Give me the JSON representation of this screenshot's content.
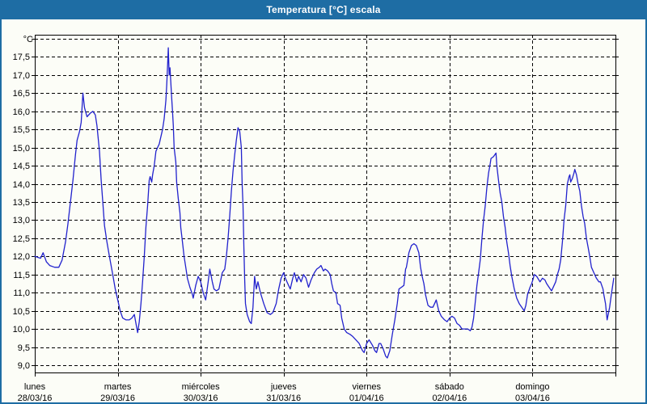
{
  "window": {
    "title": "Temperatura [°C] escala"
  },
  "colors": {
    "titlebar_bg": "#1e6da4",
    "titlebar_text": "#ffffff",
    "window_border": "#1e6da4",
    "background": "#fcfdf7",
    "grid": "#000000",
    "axis": "#000000",
    "tick_text": "#000000",
    "line": "#2222cd"
  },
  "chart_data": {
    "type": "line",
    "title": "Temperatura [°C] escala",
    "ylabel": "°C",
    "ylim": [
      9.0,
      18.0
    ],
    "ytick_step": 0.5,
    "ytick_labels_shown": [
      "17,5",
      "17,0",
      "16,5",
      "16,0",
      "15,5",
      "15,0",
      "14,5",
      "14,0",
      "13,5",
      "13,0",
      "12,5",
      "12,0",
      "11,5",
      "11,0",
      "10,5",
      "10,0",
      "9,5",
      "9,0"
    ],
    "decimal_separator": ",",
    "grid": "dashed",
    "legend": "none",
    "x_axis": {
      "range_days": [
        0,
        7
      ],
      "categories": [
        {
          "day": "lunes",
          "date": "28/03/16"
        },
        {
          "day": "martes",
          "date": "29/03/16"
        },
        {
          "day": "miércoles",
          "date": "30/03/16"
        },
        {
          "day": "jueves",
          "date": "31/03/16"
        },
        {
          "day": "viernes",
          "date": "01/04/16"
        },
        {
          "day": "sábado",
          "date": "02/04/16"
        },
        {
          "day": "domingo",
          "date": "03/04/16"
        }
      ]
    },
    "series": [
      {
        "name": "Temperatura",
        "unit": "°C",
        "color": "#2222cd",
        "points_day_degC": [
          [
            0.0,
            12.0
          ],
          [
            0.07,
            11.95
          ],
          [
            0.1,
            12.1
          ],
          [
            0.14,
            11.85
          ],
          [
            0.18,
            11.75
          ],
          [
            0.24,
            11.7
          ],
          [
            0.29,
            11.7
          ],
          [
            0.33,
            11.9
          ],
          [
            0.37,
            12.4
          ],
          [
            0.4,
            12.9
          ],
          [
            0.43,
            13.5
          ],
          [
            0.46,
            14.1
          ],
          [
            0.49,
            14.8
          ],
          [
            0.51,
            15.2
          ],
          [
            0.54,
            15.45
          ],
          [
            0.56,
            15.7
          ],
          [
            0.58,
            16.5
          ],
          [
            0.6,
            16.1
          ],
          [
            0.63,
            15.85
          ],
          [
            0.67,
            15.95
          ],
          [
            0.7,
            16.0
          ],
          [
            0.73,
            15.9
          ],
          [
            0.75,
            15.6
          ],
          [
            0.78,
            14.9
          ],
          [
            0.8,
            14.1
          ],
          [
            0.82,
            13.5
          ],
          [
            0.84,
            12.85
          ],
          [
            0.87,
            12.4
          ],
          [
            0.9,
            12.0
          ],
          [
            0.94,
            11.5
          ],
          [
            0.97,
            11.1
          ],
          [
            1.0,
            10.8
          ],
          [
            1.03,
            10.5
          ],
          [
            1.06,
            10.3
          ],
          [
            1.1,
            10.25
          ],
          [
            1.14,
            10.25
          ],
          [
            1.17,
            10.3
          ],
          [
            1.2,
            10.4
          ],
          [
            1.22,
            10.15
          ],
          [
            1.24,
            9.9
          ],
          [
            1.26,
            10.2
          ],
          [
            1.28,
            10.7
          ],
          [
            1.3,
            11.3
          ],
          [
            1.32,
            12.0
          ],
          [
            1.34,
            12.8
          ],
          [
            1.36,
            13.4
          ],
          [
            1.38,
            14.1
          ],
          [
            1.39,
            14.2
          ],
          [
            1.41,
            14.05
          ],
          [
            1.42,
            14.25
          ],
          [
            1.44,
            14.5
          ],
          [
            1.46,
            14.9
          ],
          [
            1.48,
            15.0
          ],
          [
            1.5,
            15.1
          ],
          [
            1.51,
            15.2
          ],
          [
            1.54,
            15.5
          ],
          [
            1.56,
            15.8
          ],
          [
            1.58,
            16.3
          ],
          [
            1.59,
            16.7
          ],
          [
            1.6,
            17.2
          ],
          [
            1.61,
            17.75
          ],
          [
            1.62,
            17.0
          ],
          [
            1.63,
            17.2
          ],
          [
            1.65,
            16.4
          ],
          [
            1.66,
            16.0
          ],
          [
            1.67,
            15.6
          ],
          [
            1.68,
            15.0
          ],
          [
            1.7,
            14.6
          ],
          [
            1.71,
            14.05
          ],
          [
            1.73,
            13.6
          ],
          [
            1.75,
            13.2
          ],
          [
            1.76,
            12.8
          ],
          [
            1.78,
            12.4
          ],
          [
            1.8,
            12.0
          ],
          [
            1.82,
            11.7
          ],
          [
            1.84,
            11.4
          ],
          [
            1.87,
            11.15
          ],
          [
            1.9,
            10.95
          ],
          [
            1.91,
            10.85
          ],
          [
            1.94,
            11.2
          ],
          [
            1.97,
            11.45
          ],
          [
            2.0,
            11.3
          ],
          [
            2.03,
            11.0
          ],
          [
            2.06,
            10.8
          ],
          [
            2.09,
            11.3
          ],
          [
            2.11,
            11.65
          ],
          [
            2.14,
            11.3
          ],
          [
            2.16,
            11.1
          ],
          [
            2.19,
            11.05
          ],
          [
            2.22,
            11.1
          ],
          [
            2.26,
            11.55
          ],
          [
            2.29,
            11.65
          ],
          [
            2.31,
            12.0
          ],
          [
            2.33,
            12.5
          ],
          [
            2.35,
            13.1
          ],
          [
            2.37,
            13.8
          ],
          [
            2.39,
            14.35
          ],
          [
            2.41,
            14.8
          ],
          [
            2.43,
            15.2
          ],
          [
            2.45,
            15.55
          ],
          [
            2.47,
            15.45
          ],
          [
            2.49,
            15.0
          ],
          [
            2.5,
            14.0
          ],
          [
            2.51,
            13.4
          ],
          [
            2.52,
            12.3
          ],
          [
            2.53,
            11.4
          ],
          [
            2.54,
            10.7
          ],
          [
            2.56,
            10.4
          ],
          [
            2.59,
            10.2
          ],
          [
            2.61,
            10.15
          ],
          [
            2.63,
            10.6
          ],
          [
            2.65,
            11.45
          ],
          [
            2.67,
            11.1
          ],
          [
            2.69,
            11.3
          ],
          [
            2.72,
            11.0
          ],
          [
            2.76,
            10.7
          ],
          [
            2.8,
            10.45
          ],
          [
            2.84,
            10.4
          ],
          [
            2.87,
            10.45
          ],
          [
            2.91,
            10.7
          ],
          [
            2.94,
            11.1
          ],
          [
            2.97,
            11.4
          ],
          [
            3.0,
            11.55
          ],
          [
            3.02,
            11.4
          ],
          [
            3.05,
            11.25
          ],
          [
            3.08,
            11.1
          ],
          [
            3.11,
            11.4
          ],
          [
            3.13,
            11.55
          ],
          [
            3.16,
            11.3
          ],
          [
            3.18,
            11.45
          ],
          [
            3.21,
            11.3
          ],
          [
            3.24,
            11.5
          ],
          [
            3.27,
            11.4
          ],
          [
            3.3,
            11.15
          ],
          [
            3.33,
            11.35
          ],
          [
            3.37,
            11.55
          ],
          [
            3.4,
            11.65
          ],
          [
            3.43,
            11.7
          ],
          [
            3.45,
            11.75
          ],
          [
            3.48,
            11.6
          ],
          [
            3.5,
            11.65
          ],
          [
            3.53,
            11.6
          ],
          [
            3.56,
            11.5
          ],
          [
            3.58,
            11.25
          ],
          [
            3.6,
            11.05
          ],
          [
            3.63,
            11.0
          ],
          [
            3.65,
            10.7
          ],
          [
            3.68,
            10.65
          ],
          [
            3.7,
            10.3
          ],
          [
            3.73,
            10.0
          ],
          [
            3.76,
            9.9
          ],
          [
            3.8,
            9.85
          ],
          [
            3.83,
            9.8
          ],
          [
            3.87,
            9.7
          ],
          [
            3.91,
            9.6
          ],
          [
            3.95,
            9.4
          ],
          [
            3.97,
            9.35
          ],
          [
            4.0,
            9.6
          ],
          [
            4.03,
            9.7
          ],
          [
            4.07,
            9.55
          ],
          [
            4.1,
            9.4
          ],
          [
            4.12,
            9.35
          ],
          [
            4.15,
            9.6
          ],
          [
            4.17,
            9.6
          ],
          [
            4.2,
            9.45
          ],
          [
            4.23,
            9.25
          ],
          [
            4.25,
            9.2
          ],
          [
            4.28,
            9.4
          ],
          [
            4.31,
            9.85
          ],
          [
            4.34,
            10.25
          ],
          [
            4.37,
            10.7
          ],
          [
            4.39,
            11.1
          ],
          [
            4.42,
            11.15
          ],
          [
            4.45,
            11.2
          ],
          [
            4.47,
            11.65
          ],
          [
            4.48,
            11.7
          ],
          [
            4.51,
            12.1
          ],
          [
            4.54,
            12.3
          ],
          [
            4.57,
            12.35
          ],
          [
            4.6,
            12.3
          ],
          [
            4.63,
            12.1
          ],
          [
            4.65,
            11.7
          ],
          [
            4.67,
            11.45
          ],
          [
            4.69,
            11.25
          ],
          [
            4.71,
            10.95
          ],
          [
            4.74,
            10.65
          ],
          [
            4.77,
            10.6
          ],
          [
            4.8,
            10.6
          ],
          [
            4.82,
            10.7
          ],
          [
            4.84,
            10.8
          ],
          [
            4.87,
            10.5
          ],
          [
            4.9,
            10.35
          ],
          [
            4.94,
            10.25
          ],
          [
            4.97,
            10.2
          ],
          [
            5.0,
            10.3
          ],
          [
            5.03,
            10.35
          ],
          [
            5.06,
            10.3
          ],
          [
            5.09,
            10.15
          ],
          [
            5.12,
            10.1
          ],
          [
            5.15,
            10.0
          ],
          [
            5.18,
            10.0
          ],
          [
            5.22,
            10.0
          ],
          [
            5.25,
            9.95
          ],
          [
            5.27,
            10.05
          ],
          [
            5.29,
            10.3
          ],
          [
            5.31,
            10.75
          ],
          [
            5.33,
            11.2
          ],
          [
            5.35,
            11.55
          ],
          [
            5.37,
            11.9
          ],
          [
            5.39,
            12.5
          ],
          [
            5.41,
            13.0
          ],
          [
            5.43,
            13.4
          ],
          [
            5.45,
            13.9
          ],
          [
            5.47,
            14.3
          ],
          [
            5.49,
            14.55
          ],
          [
            5.5,
            14.7
          ],
          [
            5.53,
            14.75
          ],
          [
            5.56,
            14.85
          ],
          [
            5.57,
            14.5
          ],
          [
            5.59,
            14.1
          ],
          [
            5.61,
            13.75
          ],
          [
            5.63,
            13.5
          ],
          [
            5.65,
            13.1
          ],
          [
            5.67,
            12.8
          ],
          [
            5.69,
            12.4
          ],
          [
            5.71,
            12.1
          ],
          [
            5.73,
            11.75
          ],
          [
            5.75,
            11.45
          ],
          [
            5.78,
            11.1
          ],
          [
            5.81,
            10.85
          ],
          [
            5.84,
            10.7
          ],
          [
            5.87,
            10.6
          ],
          [
            5.9,
            10.5
          ],
          [
            5.92,
            10.65
          ],
          [
            5.94,
            10.95
          ],
          [
            5.97,
            11.15
          ],
          [
            5.99,
            11.25
          ],
          [
            6.01,
            11.4
          ],
          [
            6.02,
            11.5
          ],
          [
            6.05,
            11.45
          ],
          [
            6.09,
            11.3
          ],
          [
            6.12,
            11.4
          ],
          [
            6.15,
            11.35
          ],
          [
            6.17,
            11.25
          ],
          [
            6.2,
            11.15
          ],
          [
            6.23,
            11.05
          ],
          [
            6.26,
            11.2
          ],
          [
            6.28,
            11.3
          ],
          [
            6.3,
            11.5
          ],
          [
            6.32,
            11.65
          ],
          [
            6.34,
            11.9
          ],
          [
            6.36,
            12.4
          ],
          [
            6.38,
            13.0
          ],
          [
            6.4,
            13.4
          ],
          [
            6.42,
            14.0
          ],
          [
            6.44,
            14.2
          ],
          [
            6.45,
            14.25
          ],
          [
            6.46,
            14.05
          ],
          [
            6.48,
            14.15
          ],
          [
            6.5,
            14.3
          ],
          [
            6.51,
            14.4
          ],
          [
            6.53,
            14.25
          ],
          [
            6.55,
            14.0
          ],
          [
            6.57,
            13.8
          ],
          [
            6.59,
            13.4
          ],
          [
            6.61,
            13.1
          ],
          [
            6.63,
            12.9
          ],
          [
            6.65,
            12.5
          ],
          [
            6.67,
            12.25
          ],
          [
            6.69,
            12.0
          ],
          [
            6.71,
            11.7
          ],
          [
            6.74,
            11.55
          ],
          [
            6.77,
            11.4
          ],
          [
            6.8,
            11.3
          ],
          [
            6.82,
            11.3
          ],
          [
            6.85,
            11.1
          ],
          [
            6.86,
            10.95
          ],
          [
            6.88,
            10.7
          ],
          [
            6.9,
            10.25
          ],
          [
            6.93,
            10.6
          ],
          [
            6.95,
            10.95
          ],
          [
            6.97,
            11.25
          ],
          [
            6.98,
            11.4
          ]
        ]
      }
    ]
  }
}
